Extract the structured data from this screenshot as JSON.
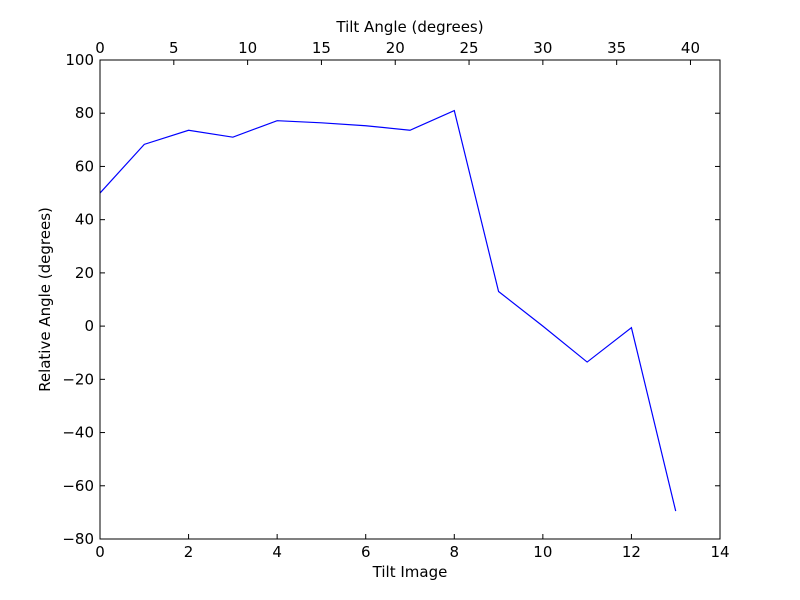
{
  "chart_data": {
    "type": "line",
    "xlabel": "Tilt Image",
    "ylabel": "Relative Angle (degrees)",
    "x2label": "Tilt Angle (degrees)",
    "xlim": [
      0,
      14
    ],
    "ylim": [
      -80,
      100
    ],
    "x2lim": [
      0,
      42
    ],
    "x_ticks": [
      0,
      2,
      4,
      6,
      8,
      10,
      12,
      14
    ],
    "y_ticks": [
      -80,
      -60,
      -40,
      -20,
      0,
      20,
      40,
      60,
      80,
      100
    ],
    "x2_ticks": [
      0,
      5,
      10,
      15,
      20,
      25,
      30,
      35,
      40
    ],
    "x_tick_labels": [
      "0",
      "2",
      "4",
      "6",
      "8",
      "10",
      "12",
      "14"
    ],
    "y_tick_labels": [
      "−80",
      "−60",
      "−40",
      "−20",
      "0",
      "20",
      "40",
      "60",
      "80",
      "100"
    ],
    "x2_tick_labels": [
      "0",
      "5",
      "10",
      "15",
      "20",
      "25",
      "30",
      "35",
      "40"
    ],
    "grid": false,
    "series": [
      {
        "color": "#0000ff",
        "x": [
          0,
          1,
          2,
          3,
          4,
          5,
          6,
          7,
          8,
          9,
          10,
          11,
          12,
          13
        ],
        "y": [
          50,
          68.3,
          73.6,
          71.0,
          77.2,
          76.4,
          75.3,
          73.6,
          81.0,
          13.0,
          0,
          -13.5,
          -0.6,
          -69.5
        ]
      }
    ]
  }
}
